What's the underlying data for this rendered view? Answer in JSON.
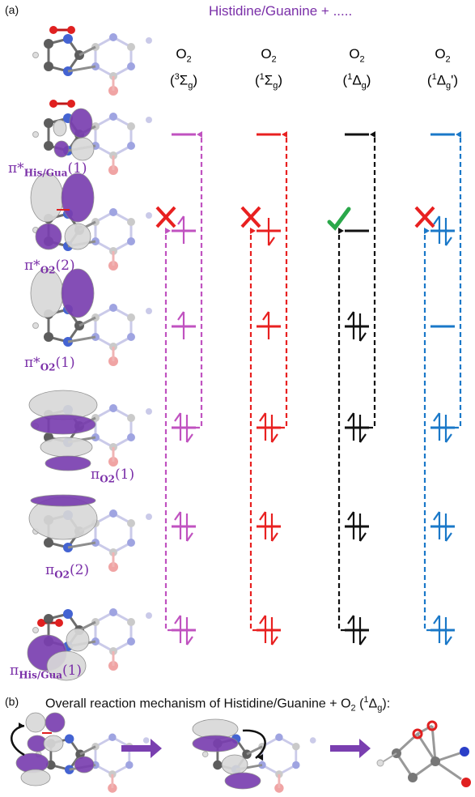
{
  "panel_a": {
    "label": "(a)",
    "title": "Histidine/Guanine + .....",
    "columns": [
      {
        "name": "O",
        "name_sub": "2",
        "state_open": "(",
        "state_sup": "3",
        "state_main": "Σ",
        "state_sub": "g",
        "state_close": ")",
        "color": "#c052c0",
        "mark": "cross",
        "levels": [
          "single",
          "up",
          "up",
          "pair",
          "pair",
          "pair"
        ]
      },
      {
        "name": "O",
        "name_sub": "2",
        "state_open": "(",
        "state_sup": "1",
        "state_main": "Σ",
        "state_sub": "g",
        "state_close": ")",
        "color": "#e82020",
        "mark": "cross",
        "levels": [
          "single",
          "down",
          "up",
          "pair",
          "pair",
          "pair"
        ]
      },
      {
        "name": "O",
        "name_sub": "2",
        "state_open": "(",
        "state_sup": "1",
        "state_main": "Δ",
        "state_sub": "g",
        "state_close": ")",
        "color": "#111111",
        "mark": "check",
        "levels": [
          "single",
          "single",
          "pair",
          "pair",
          "pair",
          "pair"
        ]
      },
      {
        "name": "O",
        "name_sub": "2",
        "state_open": "(",
        "state_sup": "1",
        "state_main": "Δ",
        "state_sub": "g",
        "state_close": "')",
        "color": "#1a78c8",
        "mark": "cross",
        "levels": [
          "single",
          "pair",
          "single",
          "pair",
          "pair",
          "pair"
        ]
      }
    ],
    "orbitals": [
      {
        "main": "π*",
        "sub": "His/Gua",
        "tail": "(1)"
      },
      {
        "main": "π*",
        "sub": "O2",
        "tail": "(2)"
      },
      {
        "main": "π*",
        "sub": "O2",
        "tail": "(1)"
      },
      {
        "main": "π",
        "sub": "O2",
        "tail": "(1)"
      },
      {
        "main": "π",
        "sub": "O2",
        "tail": "(2)"
      },
      {
        "main": "π",
        "sub": "His/Gua",
        "tail": "(1)"
      }
    ],
    "colors": {
      "orbital_purple": "#7a3fb0",
      "lobe_grey": "#d8d8d8",
      "check_green": "#2aa84a"
    }
  },
  "panel_b": {
    "label": "(b)",
    "caption_pre": "Overall reaction mechanism of Histidine/Guanine + O",
    "caption_sub": "2",
    "caption_state_open": " (",
    "caption_state_sup": "1",
    "caption_state_main": "Δ",
    "caption_state_sub": "g",
    "caption_state_close": "):",
    "arrow_color": "#7a3fb0"
  }
}
